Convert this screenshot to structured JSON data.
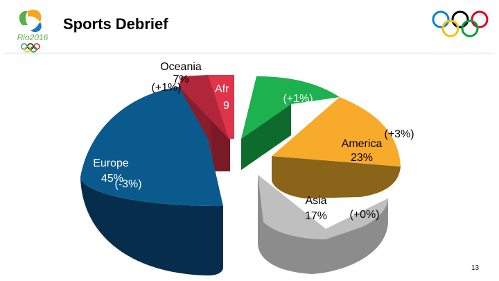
{
  "header": {
    "title": "Sports Debrief",
    "logo_text": "Rio2016"
  },
  "footer": {
    "page_number": "13"
  },
  "colors": {
    "oceania": "#E0344A",
    "africa": "#E0344A",
    "latam": "#1EB150",
    "america": "#F8AA2A",
    "asia": "#BFBFBF",
    "europe": "#0B5A8E"
  },
  "chart_data": {
    "type": "pie",
    "style": "3d-exploded",
    "slices": [
      {
        "name": "Oceania",
        "value": 7,
        "value_label": "7%",
        "change_label": "(+1%)"
      },
      {
        "name": "Africa",
        "value": 9,
        "value_label": "9%",
        "visible_name": "Afr",
        "visible_value": "9"
      },
      {
        "name": "",
        "value": 10,
        "value_label": "",
        "change_label": "(+1%)"
      },
      {
        "name": "America",
        "value": 23,
        "value_label": "23%",
        "change_label": "(+3%)"
      },
      {
        "name": "Asia",
        "value": 17,
        "value_label": "17%",
        "change_label": "(+0%)"
      },
      {
        "name": "Europe",
        "value": 45,
        "value_label": "45%",
        "change_label": "(-3%)"
      }
    ]
  }
}
